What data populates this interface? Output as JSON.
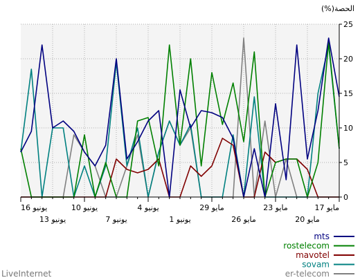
{
  "watermark": "LiveInternet",
  "chart_data": {
    "type": "line",
    "ylabel": "(%)الحصة",
    "ylim": [
      0,
      25
    ],
    "yticks": [
      0,
      5,
      10,
      15,
      20,
      25
    ],
    "grid": true,
    "legend_position": "bottom-right",
    "x": [
      "17 مايو",
      "18 مايو",
      "19 مايو",
      "20 مايو",
      "21 مايو",
      "22 مايو",
      "23 مايو",
      "24 مايو",
      "25 مايو",
      "26 مايو",
      "27 مايو",
      "28 مايو",
      "29 مايو",
      "30 مايو",
      "31 مايو",
      "1 يونيو",
      "2 يونيو",
      "3 يونيو",
      "4 يونيو",
      "5 يونيو",
      "6 يونيو",
      "7 يونيو",
      "8 يونيو",
      "9 يونيو",
      "10 يونيو",
      "11 يونيو",
      "12 يونيو",
      "13 يونيو",
      "14 يونيو",
      "15 يونيو",
      "16 يونيو"
    ],
    "tick_labels_upper": [
      {
        "index": 0,
        "label": "17 مايو"
      },
      {
        "index": 6,
        "label": "23 مايو"
      },
      {
        "index": 12,
        "label": "29 مايو"
      },
      {
        "index": 18,
        "label": "4 يونيو"
      },
      {
        "index": 24,
        "label": "10 يونيو"
      },
      {
        "index": 30,
        "label": "16 يونيو"
      }
    ],
    "tick_labels_lower": [
      {
        "index": 3,
        "label": "20 مايو"
      },
      {
        "index": 9,
        "label": "26 مايو"
      },
      {
        "index": 15,
        "label": "1 يونيو"
      },
      {
        "index": 21,
        "label": "7 يونيو"
      },
      {
        "index": 27,
        "label": "13 يونيو"
      }
    ],
    "series": [
      {
        "name": "mts",
        "color": "#000080",
        "values": [
          14.5,
          23,
          12.5,
          5.5,
          22,
          2.5,
          13.5,
          0,
          7,
          0,
          8.5,
          11.5,
          12.2,
          12.5,
          10,
          15.5,
          0,
          12.5,
          11,
          8,
          5.5,
          20,
          7.5,
          4.5,
          6.5,
          9.5,
          11,
          10,
          22,
          9.5,
          6.5
        ]
      },
      {
        "name": "rostelecom",
        "color": "#008000",
        "values": [
          7,
          22.5,
          5,
          0,
          5.5,
          5.5,
          5,
          0,
          21,
          8,
          16.5,
          10.5,
          18,
          4.5,
          20,
          7.5,
          22,
          4.5,
          11.5,
          11,
          0,
          0,
          5,
          0,
          9,
          0,
          0,
          0,
          0,
          0,
          7
        ]
      },
      {
        "name": "mavotel",
        "color": "#800000",
        "values": [
          0,
          0,
          0,
          4,
          5.5,
          5.5,
          5,
          6.5,
          0,
          0,
          7.5,
          8.5,
          4.5,
          3,
          4.5,
          0,
          0,
          5.5,
          4,
          3.5,
          4,
          5.5,
          0,
          0,
          0,
          0,
          0,
          0,
          0,
          0,
          0
        ]
      },
      {
        "name": "sovam",
        "color": "#008080",
        "values": [
          7,
          22,
          15,
          0,
          0,
          0,
          0,
          0,
          14.5,
          0,
          9,
          0,
          0,
          0,
          10.5,
          7.5,
          11,
          6.5,
          0,
          10,
          4.5,
          19.5,
          4.5,
          0,
          4.5,
          0,
          10,
          10,
          0,
          18.5,
          6.5
        ]
      },
      {
        "name": "er-telecom",
        "color": "#808080",
        "values": [
          0,
          0,
          0,
          0,
          0,
          5.5,
          0,
          11,
          0,
          23,
          0,
          0,
          0,
          0,
          10,
          7.5,
          11,
          6.5,
          0,
          9,
          4.5,
          0,
          0,
          4.5,
          6.5,
          9,
          0,
          0,
          0,
          0,
          0
        ]
      }
    ]
  }
}
